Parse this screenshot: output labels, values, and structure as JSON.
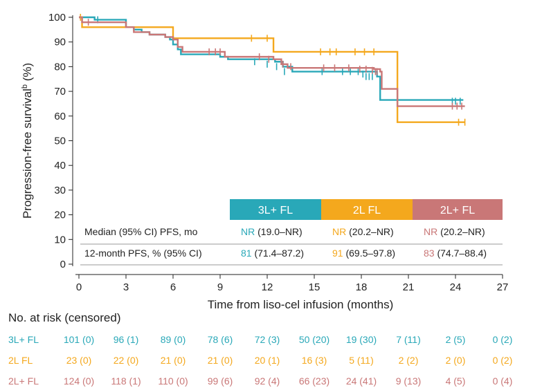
{
  "colors": {
    "3L+ FL": "#29a8b8",
    "2L FL": "#f4a81d",
    "2L+ FL": "#c97777",
    "axis": "#222222"
  },
  "chart_data": {
    "type": "line",
    "subtype": "kaplan-meier step",
    "ylabel_main": "Progression-free survival",
    "ylabel_sup": "b",
    "ylabel_unit": " (%)",
    "xlabel": "Time from liso-cel infusion (months)",
    "xlim": [
      0,
      27
    ],
    "ylim": [
      0,
      100
    ],
    "xticks": [
      0,
      3,
      6,
      9,
      12,
      15,
      18,
      21,
      24,
      27
    ],
    "yticks": [
      0,
      10,
      20,
      30,
      40,
      50,
      60,
      70,
      80,
      90,
      100
    ],
    "grid": false,
    "series": [
      {
        "name": "3L+ FL",
        "steps": [
          [
            0,
            100
          ],
          [
            1,
            99
          ],
          [
            3,
            96
          ],
          [
            3.5,
            95
          ],
          [
            4,
            94
          ],
          [
            4.5,
            93
          ],
          [
            5.5,
            92
          ],
          [
            5.8,
            91
          ],
          [
            6,
            89
          ],
          [
            6.3,
            87
          ],
          [
            6.5,
            85
          ],
          [
            8.5,
            85
          ],
          [
            9,
            84
          ],
          [
            9.5,
            83
          ],
          [
            12.5,
            82
          ],
          [
            13,
            80
          ],
          [
            13.6,
            78
          ],
          [
            19,
            78
          ],
          [
            19,
            76
          ],
          [
            19.2,
            66.5
          ],
          [
            24.5,
            66.5
          ]
        ],
        "censors": [
          [
            1.2,
            99
          ],
          [
            11.2,
            82
          ],
          [
            12,
            81
          ],
          [
            12.6,
            80
          ],
          [
            13.1,
            78
          ],
          [
            15.5,
            78
          ],
          [
            16.8,
            78
          ],
          [
            17.3,
            78
          ],
          [
            17.8,
            78
          ],
          [
            18.1,
            77
          ],
          [
            18.3,
            76
          ],
          [
            18.5,
            76
          ],
          [
            18.7,
            76
          ],
          [
            23.8,
            66
          ],
          [
            24,
            66
          ],
          [
            24.3,
            66
          ]
        ]
      },
      {
        "name": "2L FL",
        "steps": [
          [
            0,
            100
          ],
          [
            0.2,
            96
          ],
          [
            6,
            96
          ],
          [
            6,
            91.5
          ],
          [
            12.4,
            91.5
          ],
          [
            12.4,
            86
          ],
          [
            20.3,
            86
          ],
          [
            20.3,
            57.5
          ],
          [
            24.6,
            57.5
          ]
        ],
        "censors": [
          [
            0.1,
            100
          ],
          [
            11,
            91.5
          ],
          [
            12,
            91.5
          ],
          [
            15.4,
            86
          ],
          [
            16,
            86
          ],
          [
            16.4,
            86
          ],
          [
            17.6,
            86
          ],
          [
            18.2,
            86
          ],
          [
            18.8,
            86
          ],
          [
            24.2,
            57.5
          ],
          [
            24.6,
            57.5
          ]
        ]
      },
      {
        "name": "2L+ FL",
        "steps": [
          [
            0,
            100
          ],
          [
            0.2,
            98
          ],
          [
            3,
            96
          ],
          [
            3.5,
            94
          ],
          [
            4.5,
            93
          ],
          [
            5.5,
            92
          ],
          [
            6,
            91
          ],
          [
            6.3,
            88
          ],
          [
            6.6,
            86
          ],
          [
            9.1,
            86
          ],
          [
            9.3,
            84
          ],
          [
            11,
            84
          ],
          [
            12.4,
            83
          ],
          [
            12.9,
            81
          ],
          [
            13.3,
            79.5
          ],
          [
            18.8,
            79
          ],
          [
            19.2,
            78
          ],
          [
            19.3,
            71
          ],
          [
            20.3,
            71
          ],
          [
            20.3,
            64
          ],
          [
            24.6,
            64
          ]
        ],
        "censors": [
          [
            0.6,
            98
          ],
          [
            8.3,
            86
          ],
          [
            8.7,
            86
          ],
          [
            9,
            86
          ],
          [
            11.5,
            84
          ],
          [
            12.1,
            83
          ],
          [
            13,
            81
          ],
          [
            13.5,
            80
          ],
          [
            15.6,
            79.5
          ],
          [
            16.3,
            79.5
          ],
          [
            17.2,
            79.5
          ],
          [
            17.9,
            79
          ],
          [
            18.3,
            79
          ],
          [
            18.7,
            78.5
          ],
          [
            18.9,
            78
          ],
          [
            19,
            78
          ],
          [
            23.8,
            64
          ],
          [
            24.1,
            64
          ],
          [
            24.4,
            64
          ]
        ]
      }
    ],
    "table": {
      "headers": [
        "3L+ FL",
        "2L FL",
        "2L+ FL"
      ],
      "rows": [
        {
          "label": "Median (95% CI) PFS, mo",
          "values": [
            [
              "NR",
              " (19.0–NR)"
            ],
            [
              "NR",
              " (20.2–NR)"
            ],
            [
              "NR",
              " (20.2–NR)"
            ]
          ]
        },
        {
          "label": "12-month PFS, % (95% CI)",
          "values": [
            [
              "81",
              " (71.4–87.2)"
            ],
            [
              "91",
              " (69.5–97.8)"
            ],
            [
              "83",
              " (74.7–88.4)"
            ]
          ]
        }
      ]
    },
    "risk_table": {
      "title": "No. at risk (censored)",
      "times": [
        0,
        3,
        6,
        9,
        12,
        15,
        18,
        21,
        24,
        27
      ],
      "rows": [
        {
          "name": "3L+ FL",
          "values": [
            "101 (0)",
            "96 (1)",
            "89 (0)",
            "78 (6)",
            "72 (3)",
            "50 (20)",
            "19 (30)",
            "7 (11)",
            "2 (5)",
            "0 (2)"
          ]
        },
        {
          "name": "2L FL",
          "values": [
            "23 (0)",
            "22 (0)",
            "21 (0)",
            "21 (0)",
            "20 (1)",
            "16 (3)",
            "5 (11)",
            "2 (2)",
            "2 (0)",
            "0 (2)"
          ]
        },
        {
          "name": "2L+ FL",
          "values": [
            "124 (0)",
            "118 (1)",
            "110 (0)",
            "99 (6)",
            "92 (4)",
            "66 (23)",
            "24 (41)",
            "9 (13)",
            "4 (5)",
            "0 (4)"
          ]
        }
      ]
    }
  }
}
